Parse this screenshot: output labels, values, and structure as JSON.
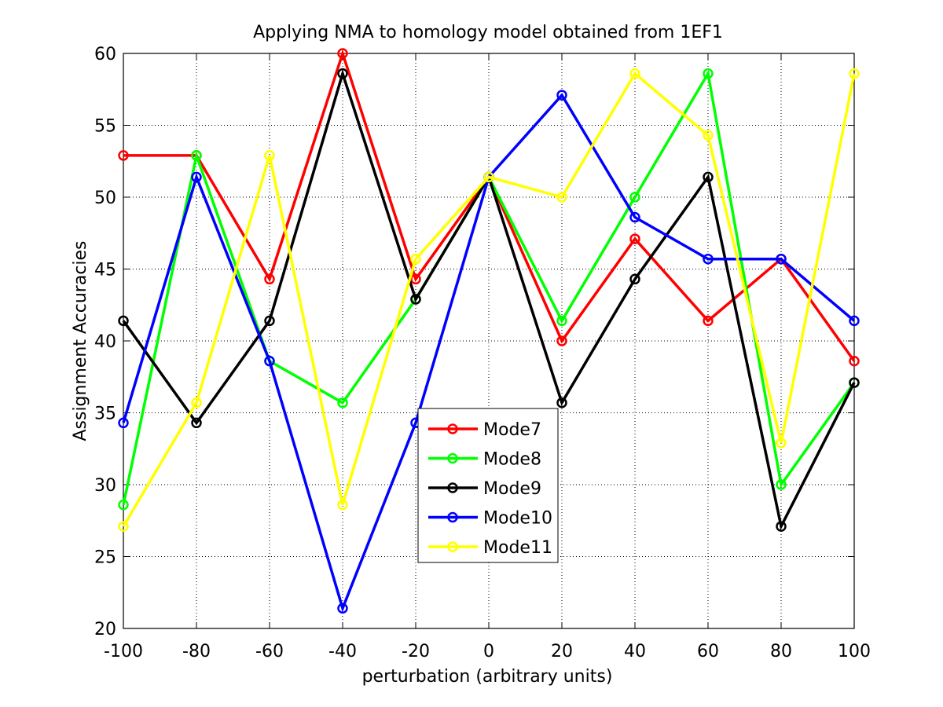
{
  "chart_data": {
    "type": "line",
    "title": "Applying NMA to homology model obtained from 1EF1",
    "xlabel": "perturbation (arbitrary units)",
    "ylabel": "Assignment Accuracies",
    "x": [
      -100,
      -80,
      -60,
      -40,
      -20,
      0,
      20,
      40,
      60,
      80,
      100
    ],
    "xlim": [
      -100,
      100
    ],
    "ylim": [
      20,
      60
    ],
    "xticks": [
      -100,
      -80,
      -60,
      -40,
      -20,
      0,
      20,
      40,
      60,
      80,
      100
    ],
    "yticks": [
      20,
      25,
      30,
      35,
      40,
      45,
      50,
      55,
      60
    ],
    "grid": true,
    "legend_position": "center",
    "series": [
      {
        "name": "Mode7",
        "color": "#ff0000",
        "values": [
          52.9,
          52.9,
          44.3,
          60.0,
          44.3,
          51.4,
          40.0,
          47.1,
          41.4,
          45.7,
          38.6
        ]
      },
      {
        "name": "Mode8",
        "color": "#00ff00",
        "values": [
          28.6,
          52.9,
          38.6,
          35.7,
          42.9,
          51.4,
          41.4,
          50.0,
          58.6,
          30.0,
          37.1
        ]
      },
      {
        "name": "Mode9",
        "color": "#000000",
        "values": [
          41.4,
          34.3,
          41.4,
          58.6,
          42.9,
          51.4,
          35.7,
          44.3,
          51.4,
          27.1,
          37.1
        ]
      },
      {
        "name": "Mode10",
        "color": "#0000ff",
        "values": [
          34.3,
          51.4,
          38.6,
          21.4,
          34.3,
          51.4,
          57.1,
          48.6,
          45.7,
          45.7,
          41.4
        ]
      },
      {
        "name": "Mode11",
        "color": "#ffff00",
        "values": [
          27.1,
          35.7,
          52.9,
          28.6,
          45.7,
          51.4,
          50.0,
          58.6,
          54.3,
          32.9,
          58.6
        ]
      }
    ]
  }
}
